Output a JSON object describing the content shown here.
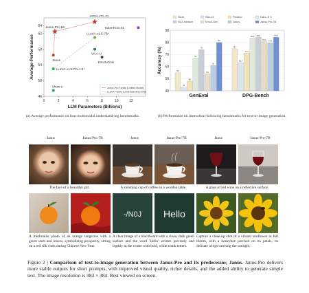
{
  "chart_data": [
    {
      "type": "scatter",
      "xlabel": "LLM Parameters (Billions)",
      "ylabel": "Average Performance",
      "xlim": [
        0,
        14
      ],
      "ylim": [
        46,
        66
      ],
      "xticks": [
        "0",
        "2",
        "4",
        "6",
        "8",
        "10",
        "12"
      ],
      "yticks": [
        "46",
        "50",
        "54",
        "58",
        "62",
        "64"
      ],
      "points": [
        {
          "label": "Janus-Pro-7B",
          "x": 7,
          "y": 65,
          "color": "#c0392b",
          "marker": "star"
        },
        {
          "label": "Janus-Pro-1B",
          "x": 1.5,
          "y": 62.5,
          "color": "#c0392b",
          "marker": "star"
        },
        {
          "label": "Janus",
          "x": 1.3,
          "y": 56.5,
          "color": "#c0392b",
          "marker": "circle"
        },
        {
          "label": "LLaVA-v1.5-7B*",
          "x": 7,
          "y": 61,
          "color": "#6ab04c",
          "marker": "circle"
        },
        {
          "label": "VILA-U",
          "x": 7,
          "y": 58,
          "color": "#2d7d46",
          "marker": "circle"
        },
        {
          "label": "Emu3-Chat",
          "x": 8,
          "y": 56,
          "color": "#34495e",
          "marker": "circle"
        },
        {
          "label": "TokenFlow-XL",
          "x": 13,
          "y": 63.5,
          "color": "#8e44ad",
          "marker": "circle"
        },
        {
          "label": "LLaVA-v1.5-Phi-1.5*",
          "x": 1.3,
          "y": 53,
          "color": "#27ae60",
          "marker": "circle"
        },
        {
          "label": "Show-o",
          "x": 1.3,
          "y": 47.5,
          "color": "#16a085",
          "marker": "circle"
        }
      ],
      "legend": [
        "Janus-Pro Family (Unified Model)",
        "LLaVA Family (Understanding Only)"
      ],
      "legend_position": "bottom-right"
    },
    {
      "type": "bar",
      "ylabel": "Accuracy (%)",
      "categories": [
        "GenEval",
        "DPG-Bench"
      ],
      "ylim": [
        40,
        90
      ],
      "series": [
        {
          "name": "SDXL",
          "color": "#f3e6c8",
          "values": [
            55,
            74.7
          ]
        },
        {
          "name": "SDv1.5",
          "color": "#d9e4ee",
          "values": [
            43,
            63.2
          ]
        },
        {
          "name": "PixArt-α",
          "color": "#f1e2b8",
          "values": [
            48,
            71.1
          ]
        },
        {
          "name": "DALL-E 3",
          "color": "#dfe8da",
          "values": [
            67,
            83.5
          ]
        },
        {
          "name": "SD3-Medium",
          "color": "#c9ced6",
          "values": [
            74,
            84.1
          ]
        },
        {
          "name": "Emu3-Gen",
          "color": "#e8dcc8",
          "values": [
            54,
            80.6
          ]
        },
        {
          "name": "Janus",
          "color": "#b8cde0",
          "values": [
            61,
            79.7
          ]
        },
        {
          "name": "Janus-Pro-7B",
          "color": "#6f8fd4",
          "values": [
            80,
            84.2
          ]
        }
      ],
      "legend_position": "top"
    }
  ],
  "captions": {
    "a": "(a) Average performance on four multimodal understand-ing benchmarks.",
    "b": "(b) Performance on instruction-following benchmarks for text-to-image generation."
  },
  "columns": [
    "Janus",
    "Janus-Pro-7B",
    "Janus",
    "Janus-Pro-7B",
    "Janus",
    "Janus-Pro-7B"
  ],
  "prompts": [
    "The face of a beautiful girl.",
    "A steaming cup of coffee on a wooden table.",
    "A glass of red wine on a reflective surface.",
    "A minimalist photo of an orange tangerine with a green stem and leaves, symbolizing prosperity, sitting on a red silk cloth during Chinese New Year.",
    "A clear image of a blackboard with a clean, dark green surface and the word 'Hello' written precisely and legibly in the center with bold, white chalk letters.",
    "Capture a close-up shot of a vibrant sunflower in full bloom, with a honeybee perched on its petals, its delicate wings catching the sunlight."
  ],
  "board_text": {
    "janus": "-/N0J",
    "pro": "Hello"
  },
  "figure": {
    "label": "Figure 2 |",
    "title": "Comparison of text-to-image generation between Janus-Pro and its predecessor, Janus.",
    "body": "Janus-Pro delivers more stable outputs for short prompts, with improved visual quality, richer details, and the added ability to generate simple text. The image resolution is 384 × 384. Best viewed on screen."
  }
}
